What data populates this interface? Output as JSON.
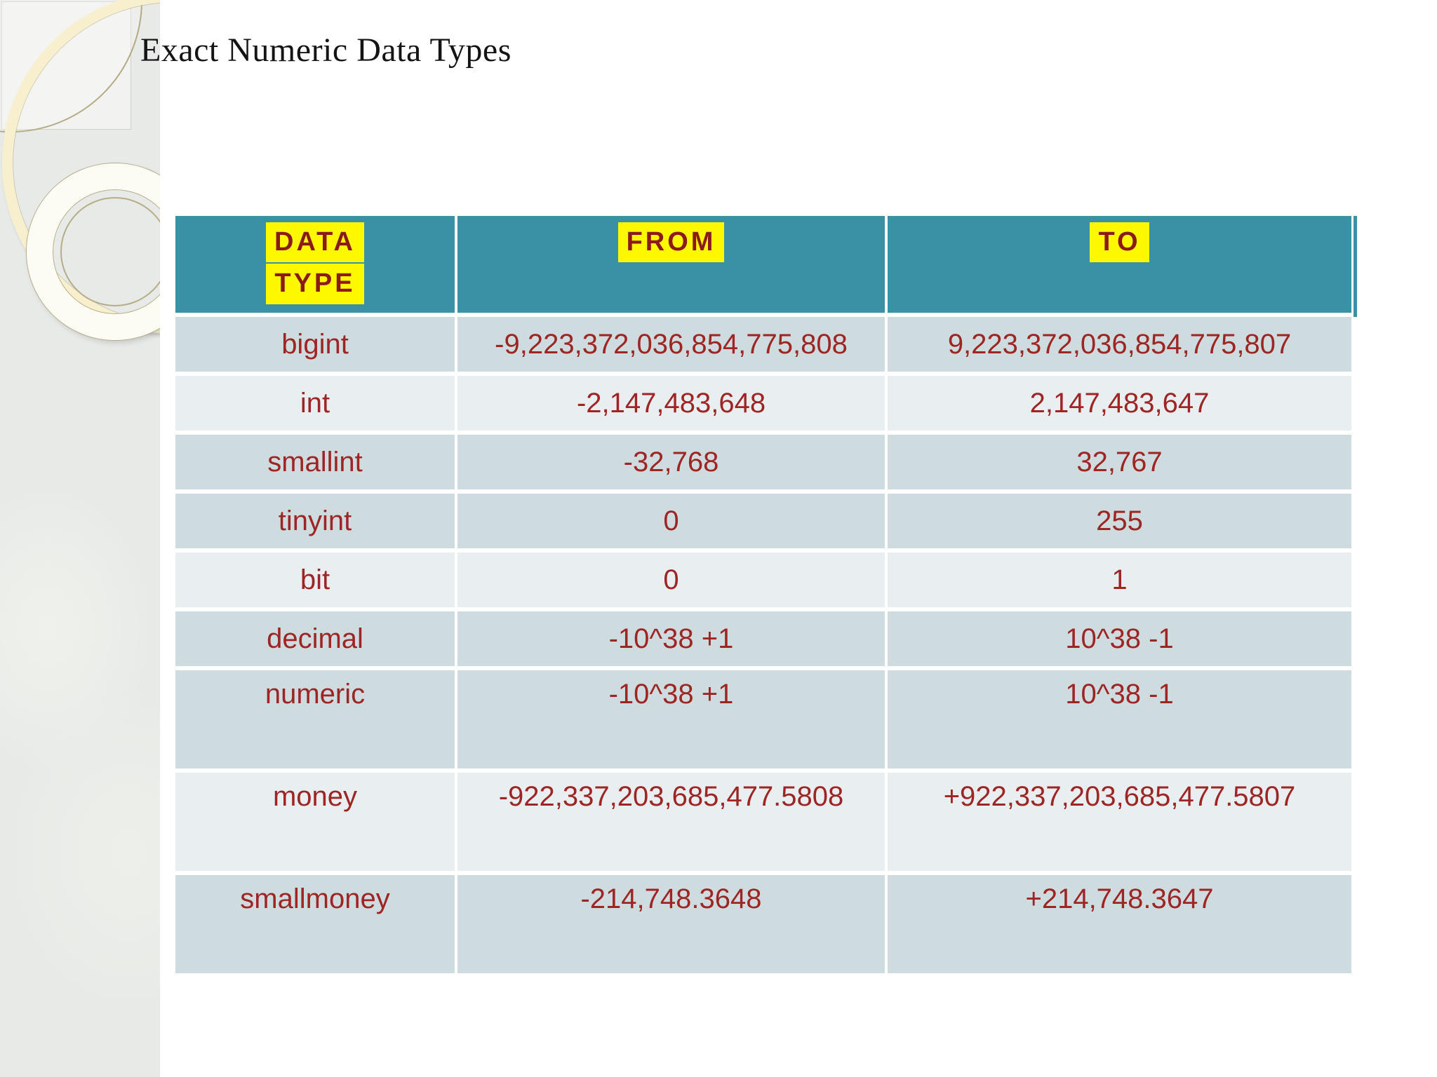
{
  "slide": {
    "title": "Exact Numeric Data Types"
  },
  "table": {
    "headers": [
      {
        "id": "data-type",
        "lines": [
          "DATA",
          "TYPE"
        ]
      },
      {
        "id": "from",
        "lines": [
          "FROM"
        ]
      },
      {
        "id": "to",
        "lines": [
          "TO"
        ]
      }
    ],
    "rows": [
      {
        "type": "bigint",
        "from": "-9,223,372,036,854,775,808",
        "to": "9,223,372,036,854,775,807",
        "shade": "dark",
        "tall": false
      },
      {
        "type": "int",
        "from": "-2,147,483,648",
        "to": "2,147,483,647",
        "shade": "light",
        "tall": false
      },
      {
        "type": "smallint",
        "from": "-32,768",
        "to": "32,767",
        "shade": "dark",
        "tall": false
      },
      {
        "type": "tinyint",
        "from": "0",
        "to": "255",
        "shade": "dark",
        "tall": false
      },
      {
        "type": "bit",
        "from": "0",
        "to": "1",
        "shade": "light",
        "tall": false
      },
      {
        "type": "decimal",
        "from": "-10^38 +1",
        "to": "10^38 -1",
        "shade": "dark",
        "tall": false
      },
      {
        "type": "numeric",
        "from": "-10^38 +1",
        "to": "10^38 -1",
        "shade": "dark",
        "tall": true
      },
      {
        "type": "money",
        "from": "-922,337,203,685,477.5808",
        "to": "+922,337,203,685,477.5807",
        "shade": "light",
        "tall": true
      },
      {
        "type": "smallmoney",
        "from": "-214,748.3648",
        "to": "+214,748.3647",
        "shade": "dark",
        "tall": true
      }
    ],
    "colors": {
      "header_teal": "#3a90a4",
      "header_highlight": "#fbf800",
      "header_text": "#8b1b1b",
      "cell_text": "#9d2524",
      "row_dark": "#cedce0",
      "row_light": "#e9eef0"
    }
  }
}
